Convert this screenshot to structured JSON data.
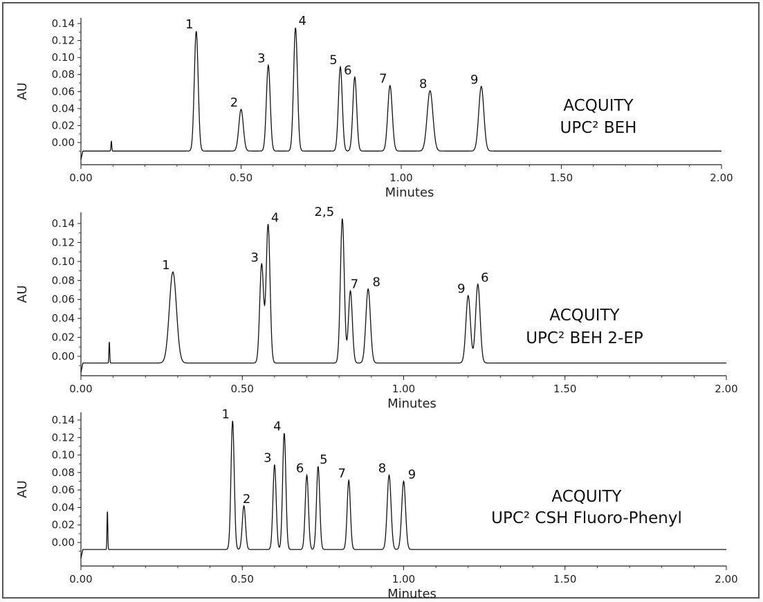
{
  "chart_data": [
    {
      "type": "line",
      "title": "",
      "column_label": [
        "ACQUITY",
        "UPC² BEH"
      ],
      "xlabel": "Minutes",
      "ylabel": "AU",
      "xlim": [
        0,
        2.0
      ],
      "ylim": [
        -0.014,
        0.146
      ],
      "xticks": [
        "0.00",
        "0.50",
        "1.00",
        "1.50",
        "2.00"
      ],
      "yticks": [
        "0.00",
        "0.02",
        "0.04",
        "0.06",
        "0.08",
        "0.10",
        "0.12",
        "0.14"
      ],
      "baseline": -0.01,
      "injection": {
        "x": 0.095,
        "y": 0.002
      },
      "peaks": [
        {
          "label": "1",
          "x": 0.36,
          "y": 0.131,
          "w": 0.006
        },
        {
          "label": "2",
          "x": 0.5,
          "y": 0.039,
          "w": 0.007
        },
        {
          "label": "3",
          "x": 0.585,
          "y": 0.091,
          "w": 0.006
        },
        {
          "label": "4",
          "x": 0.67,
          "y": 0.135,
          "w": 0.006
        },
        {
          "label": "5",
          "x": 0.81,
          "y": 0.089,
          "w": 0.006
        },
        {
          "label": "6",
          "x": 0.855,
          "y": 0.077,
          "w": 0.006
        },
        {
          "label": "7",
          "x": 0.965,
          "y": 0.067,
          "w": 0.007
        },
        {
          "label": "8",
          "x": 1.09,
          "y": 0.061,
          "w": 0.009
        },
        {
          "label": "9",
          "x": 1.25,
          "y": 0.066,
          "w": 0.008
        }
      ]
    },
    {
      "type": "line",
      "title": "",
      "column_label": [
        "ACQUITY",
        "UPC² BEH 2-EP"
      ],
      "xlabel": "Minutes",
      "ylabel": "AU",
      "xlim": [
        0,
        2.0
      ],
      "ylim": [
        -0.014,
        0.146
      ],
      "xticks": [
        "0.00",
        "0.50",
        "1.00",
        "1.50",
        "2.00"
      ],
      "yticks": [
        "0.00",
        "0.02",
        "0.04",
        "0.06",
        "0.08",
        "0.10",
        "0.12",
        "0.14"
      ],
      "baseline": -0.007,
      "injection": {
        "x": 0.088,
        "y": 0.016
      },
      "peaks": [
        {
          "label": "1",
          "x": 0.285,
          "y": 0.089,
          "w": 0.011
        },
        {
          "label": "3",
          "x": 0.56,
          "y": 0.097,
          "w": 0.006
        },
        {
          "label": "4",
          "x": 0.58,
          "y": 0.139,
          "w": 0.006
        },
        {
          "label": "2,5",
          "x": 0.81,
          "y": 0.145,
          "w": 0.006
        },
        {
          "label": "7",
          "x": 0.835,
          "y": 0.069,
          "w": 0.006
        },
        {
          "label": "8",
          "x": 0.89,
          "y": 0.071,
          "w": 0.007
        },
        {
          "label": "9",
          "x": 1.2,
          "y": 0.064,
          "w": 0.007
        },
        {
          "label": "6",
          "x": 1.23,
          "y": 0.076,
          "w": 0.007
        }
      ]
    },
    {
      "type": "line",
      "title": "",
      "column_label": [
        "ACQUITY",
        "UPC² CSH Fluoro-Phenyl"
      ],
      "xlabel": "Minutes",
      "ylabel": "AU",
      "xlim": [
        0,
        2.0
      ],
      "ylim": [
        -0.014,
        0.146
      ],
      "xticks": [
        "0.00",
        "0.50",
        "1.00",
        "1.50",
        "2.00"
      ],
      "yticks": [
        "0.00",
        "0.02",
        "0.04",
        "0.06",
        "0.08",
        "0.10",
        "0.12",
        "0.14"
      ],
      "baseline": -0.008,
      "injection": {
        "x": 0.082,
        "y": 0.037
      },
      "peaks": [
        {
          "label": "1",
          "x": 0.47,
          "y": 0.139,
          "w": 0.005
        },
        {
          "label": "2",
          "x": 0.505,
          "y": 0.042,
          "w": 0.005
        },
        {
          "label": "3",
          "x": 0.6,
          "y": 0.089,
          "w": 0.005
        },
        {
          "label": "4",
          "x": 0.63,
          "y": 0.125,
          "w": 0.005
        },
        {
          "label": "6",
          "x": 0.7,
          "y": 0.077,
          "w": 0.005
        },
        {
          "label": "5",
          "x": 0.735,
          "y": 0.087,
          "w": 0.005
        },
        {
          "label": "7",
          "x": 0.83,
          "y": 0.071,
          "w": 0.005
        },
        {
          "label": "8",
          "x": 0.955,
          "y": 0.077,
          "w": 0.006
        },
        {
          "label": "9",
          "x": 1.0,
          "y": 0.07,
          "w": 0.006
        }
      ]
    }
  ]
}
